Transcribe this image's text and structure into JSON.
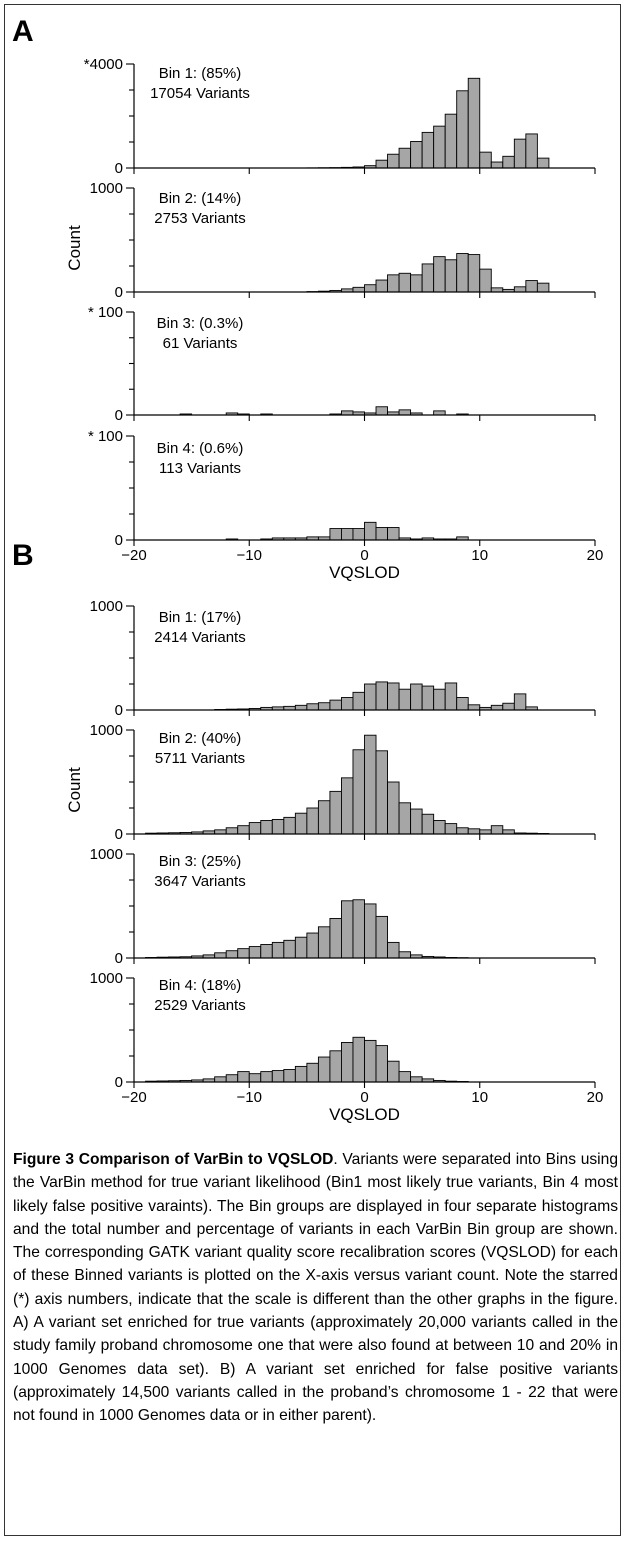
{
  "chart_data": [
    {
      "type": "bar",
      "panel": "A",
      "group": "A",
      "ylabel": "",
      "ytick_labels": [
        "0",
        "*4000"
      ],
      "ylim": [
        0,
        4000
      ],
      "xlim": [
        -20,
        20
      ],
      "bin_label": "Bin 1: (85%)",
      "variant_label": "17054 Variants",
      "x": [
        -11,
        -10,
        -9,
        -8,
        -7,
        -6,
        -5,
        -4,
        -3,
        -2,
        -1,
        0,
        1,
        2,
        3,
        4,
        5,
        6,
        7,
        8,
        9,
        10,
        11,
        12,
        13,
        14,
        15
      ],
      "values": [
        0,
        0,
        0,
        0,
        0,
        0,
        5,
        10,
        15,
        25,
        40,
        90,
        300,
        530,
        760,
        1020,
        1370,
        1610,
        2070,
        2970,
        3450,
        610,
        230,
        450,
        1110,
        1310,
        380
      ]
    },
    {
      "type": "bar",
      "panel": "A",
      "group": "A",
      "ylabel": "Count",
      "ytick_labels": [
        "0",
        "1000"
      ],
      "ylim": [
        0,
        1000
      ],
      "xlim": [
        -20,
        20
      ],
      "bin_label": "Bin 2: (14%)",
      "variant_label": "2753 Variants",
      "x": [
        -11,
        -10,
        -9,
        -8,
        -7,
        -6,
        -5,
        -4,
        -3,
        -2,
        -1,
        0,
        1,
        2,
        3,
        4,
        5,
        6,
        7,
        8,
        9,
        10,
        11,
        12,
        13,
        14,
        15
      ],
      "values": [
        0,
        0,
        0,
        0,
        0,
        0,
        4,
        8,
        15,
        30,
        45,
        70,
        115,
        165,
        180,
        165,
        270,
        340,
        310,
        370,
        360,
        220,
        40,
        25,
        50,
        110,
        85
      ]
    },
    {
      "type": "bar",
      "panel": "A",
      "group": "A",
      "ylabel": "",
      "ytick_labels": [
        "0",
        "* 100"
      ],
      "ylim": [
        0,
        100
      ],
      "xlim": [
        -20,
        20
      ],
      "bin_label": "Bin 3: (0.3%)",
      "variant_label": "61 Variants",
      "x": [
        -16,
        -13,
        -12,
        -11,
        -10,
        -9,
        -6,
        -3,
        -2,
        -1,
        0,
        1,
        2,
        3,
        4,
        5,
        6,
        7,
        8
      ],
      "values": [
        1,
        0,
        2,
        1,
        0,
        1,
        0,
        1,
        4,
        3,
        2,
        8,
        3,
        5,
        2,
        0,
        4,
        0,
        1
      ]
    },
    {
      "type": "bar",
      "panel": "A",
      "group": "A",
      "ylabel": "",
      "ytick_labels": [
        "0",
        "* 100"
      ],
      "ylim": [
        0,
        100
      ],
      "xlim": [
        -20,
        20
      ],
      "bin_label": "Bin 4: (0.6%)",
      "variant_label": "113 Variants",
      "x": [
        -12,
        -9,
        -8,
        -7,
        -6,
        -5,
        -4,
        -3,
        -2,
        -1,
        0,
        1,
        2,
        3,
        4,
        5,
        6,
        7,
        8
      ],
      "values": [
        1,
        1,
        2,
        2,
        2,
        3,
        3,
        11,
        11,
        11,
        17,
        12,
        12,
        2,
        1,
        2,
        1,
        1,
        3
      ]
    },
    {
      "type": "bar",
      "panel": "B",
      "group": "B",
      "ylabel": "",
      "ytick_labels": [
        "0",
        "1000"
      ],
      "ylim": [
        0,
        1000
      ],
      "xlim": [
        -20,
        20
      ],
      "bin_label": "Bin 1: (17%)",
      "variant_label": "2414 Variants",
      "x": [
        -13,
        -12,
        -11,
        -10,
        -9,
        -8,
        -7,
        -6,
        -5,
        -4,
        -3,
        -2,
        -1,
        0,
        1,
        2,
        3,
        4,
        5,
        6,
        7,
        8,
        9,
        10,
        11,
        12,
        13,
        14
      ],
      "values": [
        5,
        8,
        10,
        15,
        25,
        30,
        35,
        45,
        60,
        70,
        95,
        120,
        170,
        250,
        270,
        260,
        200,
        250,
        230,
        200,
        260,
        120,
        50,
        25,
        45,
        65,
        155,
        30
      ]
    },
    {
      "type": "bar",
      "panel": "B",
      "group": "B",
      "ylabel": "Count",
      "ytick_labels": [
        "0",
        "1000"
      ],
      "ylim": [
        0,
        1000
      ],
      "xlim": [
        -20,
        20
      ],
      "bin_label": "Bin 2: (40%)",
      "variant_label": "5711 Variants",
      "x": [
        -19,
        -18,
        -17,
        -16,
        -15,
        -14,
        -13,
        -12,
        -11,
        -10,
        -9,
        -8,
        -7,
        -6,
        -5,
        -4,
        -3,
        -2,
        -1,
        0,
        1,
        2,
        3,
        4,
        5,
        6,
        7,
        8,
        9,
        10,
        11,
        12,
        13,
        14,
        15
      ],
      "values": [
        8,
        10,
        12,
        15,
        20,
        30,
        40,
        60,
        80,
        110,
        130,
        140,
        160,
        200,
        250,
        320,
        410,
        540,
        810,
        950,
        800,
        500,
        300,
        240,
        190,
        130,
        100,
        60,
        50,
        40,
        80,
        40,
        10,
        8,
        5
      ]
    },
    {
      "type": "bar",
      "panel": "B",
      "group": "B",
      "ylabel": "",
      "ytick_labels": [
        "0",
        "1000"
      ],
      "ylim": [
        0,
        1000
      ],
      "xlim": [
        -20,
        20
      ],
      "bin_label": "Bin 3: (25%)",
      "variant_label": "3647 Variants",
      "x": [
        -19,
        -18,
        -17,
        -16,
        -15,
        -14,
        -13,
        -12,
        -11,
        -10,
        -9,
        -8,
        -7,
        -6,
        -5,
        -4,
        -3,
        -2,
        -1,
        0,
        1,
        2,
        3,
        4,
        5,
        6,
        7,
        8
      ],
      "values": [
        5,
        8,
        10,
        12,
        20,
        30,
        50,
        70,
        90,
        110,
        130,
        150,
        170,
        200,
        240,
        300,
        380,
        550,
        560,
        520,
        400,
        150,
        60,
        30,
        15,
        10,
        5,
        3
      ]
    },
    {
      "type": "bar",
      "panel": "B",
      "group": "B",
      "ylabel": "",
      "ytick_labels": [
        "0",
        "1000"
      ],
      "ylim": [
        0,
        1000
      ],
      "xlim": [
        -20,
        20
      ],
      "bin_label": "Bin 4: (18%)",
      "variant_label": "2529 Variants",
      "x": [
        -19,
        -18,
        -17,
        -16,
        -15,
        -14,
        -13,
        -12,
        -11,
        -10,
        -9,
        -8,
        -7,
        -6,
        -5,
        -4,
        -3,
        -2,
        -1,
        0,
        1,
        2,
        3,
        4,
        5,
        6,
        7,
        8
      ],
      "values": [
        8,
        10,
        12,
        15,
        20,
        30,
        50,
        70,
        100,
        80,
        100,
        110,
        120,
        150,
        180,
        240,
        300,
        380,
        430,
        400,
        350,
        200,
        100,
        50,
        30,
        15,
        8,
        5
      ]
    }
  ],
  "panel_letters": {
    "a": "A",
    "b": "B"
  },
  "x_axis": {
    "ticks": [
      -20,
      -10,
      0,
      10,
      20
    ],
    "tick_labels": [
      "−20",
      "−10",
      "0",
      "10",
      "20"
    ],
    "title": "VQSLOD"
  },
  "caption": {
    "title": "Figure 3 Comparison of VarBin to VQSLOD",
    "body": ". Variants were separated into Bins using the VarBin method for true variant likelihood (Bin1 most likely true variants, Bin 4 most likely false positive varaints). The Bin groups are displayed in four separate histograms and the total number and percentage of variants in each VarBin Bin group are shown. The corresponding GATK variant quality score recalibration scores (VQSLOD) for each of these Binned variants is plotted on the X-axis versus variant count. Note the starred (*) axis numbers, indicate that the scale is different than the other graphs in the figure. A) A variant set enriched for true variants (approximately 20,000 variants called in the study family proband chromosome one that were also found at between 10 and 20% in 1000 Genomes data set). B) A variant set enriched for false positive variants (approximately 14,500 variants called in the proband’s chromosome 1 - 22 that were not found in 1000 Genomes data or in either parent)."
  },
  "colors": {
    "bar_fill": "#a6a6a6",
    "bar_stroke": "#000000",
    "axis": "#000000"
  }
}
